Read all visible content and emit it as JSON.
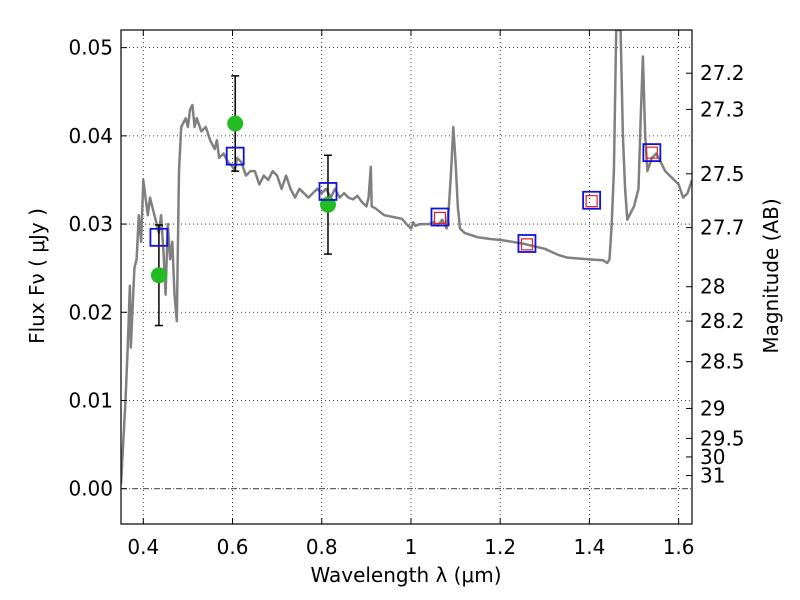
{
  "chart_data": {
    "type": "scatter",
    "xlabel": "Wavelength  λ (μm)",
    "ylabel": "Flux  Fν ( μJy )",
    "y2label": "Magnitude (AB)",
    "xlim": [
      0.35,
      1.63
    ],
    "ylim": [
      -0.004,
      0.052
    ],
    "grid": true,
    "xticks": [
      {
        "value": 0.4,
        "label": "0.4"
      },
      {
        "value": 0.6,
        "label": "0.6"
      },
      {
        "value": 0.8,
        "label": "0.8"
      },
      {
        "value": 1.0,
        "label": "1"
      },
      {
        "value": 1.2,
        "label": "1.2"
      },
      {
        "value": 1.4,
        "label": "1.4"
      },
      {
        "value": 1.6,
        "label": "1.6"
      }
    ],
    "yticks": [
      {
        "value": 0.0,
        "label": "0.00"
      },
      {
        "value": 0.01,
        "label": "0.01"
      },
      {
        "value": 0.02,
        "label": "0.02"
      },
      {
        "value": 0.03,
        "label": "0.03"
      },
      {
        "value": 0.04,
        "label": "0.04"
      },
      {
        "value": 0.05,
        "label": "0.05"
      }
    ],
    "y2ticks": [
      {
        "flux": 0.0471,
        "label": "27.2"
      },
      {
        "flux": 0.043,
        "label": "27.3"
      },
      {
        "flux": 0.0357,
        "label": "27.5"
      },
      {
        "flux": 0.0296,
        "label": "27.7"
      },
      {
        "flux": 0.0229,
        "label": "28"
      },
      {
        "flux": 0.019,
        "label": "28.2"
      },
      {
        "flux": 0.0144,
        "label": "28.5"
      },
      {
        "flux": 0.0091,
        "label": "29"
      },
      {
        "flux": 0.0057,
        "label": "29.5"
      },
      {
        "flux": 0.0036,
        "label": "30"
      },
      {
        "flux": 0.0015,
        "label": "31"
      }
    ],
    "colors": {
      "model": "#808080",
      "observed": "#22bb22",
      "model_box": "#1111dd",
      "nir_box": "#dd2222",
      "errorbar": "#000000"
    },
    "model_spectrum": [
      [
        0.35,
        0.0005
      ],
      [
        0.36,
        0.01
      ],
      [
        0.365,
        0.016
      ],
      [
        0.37,
        0.023
      ],
      [
        0.372,
        0.016
      ],
      [
        0.38,
        0.025
      ],
      [
        0.385,
        0.026
      ],
      [
        0.39,
        0.031
      ],
      [
        0.395,
        0.028
      ],
      [
        0.4,
        0.035
      ],
      [
        0.405,
        0.033
      ],
      [
        0.41,
        0.031
      ],
      [
        0.415,
        0.033
      ],
      [
        0.42,
        0.032
      ],
      [
        0.43,
        0.03
      ],
      [
        0.435,
        0.029
      ],
      [
        0.44,
        0.031
      ],
      [
        0.445,
        0.027
      ],
      [
        0.45,
        0.022
      ],
      [
        0.455,
        0.03
      ],
      [
        0.46,
        0.026
      ],
      [
        0.465,
        0.028
      ],
      [
        0.47,
        0.022
      ],
      [
        0.475,
        0.019
      ],
      [
        0.48,
        0.036
      ],
      [
        0.485,
        0.041
      ],
      [
        0.49,
        0.0415
      ],
      [
        0.495,
        0.042
      ],
      [
        0.5,
        0.041
      ],
      [
        0.505,
        0.043
      ],
      [
        0.51,
        0.0435
      ],
      [
        0.515,
        0.041
      ],
      [
        0.52,
        0.042
      ],
      [
        0.53,
        0.0405
      ],
      [
        0.54,
        0.041
      ],
      [
        0.55,
        0.0395
      ],
      [
        0.56,
        0.0385
      ],
      [
        0.565,
        0.0395
      ],
      [
        0.57,
        0.0375
      ],
      [
        0.58,
        0.038
      ],
      [
        0.59,
        0.037
      ],
      [
        0.6,
        0.0365
      ],
      [
        0.605,
        0.036
      ],
      [
        0.61,
        0.0375
      ],
      [
        0.62,
        0.037
      ],
      [
        0.63,
        0.0355
      ],
      [
        0.64,
        0.036
      ],
      [
        0.65,
        0.036
      ],
      [
        0.66,
        0.0345
      ],
      [
        0.67,
        0.0355
      ],
      [
        0.68,
        0.035
      ],
      [
        0.69,
        0.036
      ],
      [
        0.7,
        0.0355
      ],
      [
        0.71,
        0.034
      ],
      [
        0.72,
        0.0355
      ],
      [
        0.73,
        0.034
      ],
      [
        0.74,
        0.033
      ],
      [
        0.75,
        0.034
      ],
      [
        0.76,
        0.0335
      ],
      [
        0.77,
        0.033
      ],
      [
        0.78,
        0.0335
      ],
      [
        0.79,
        0.034
      ],
      [
        0.8,
        0.0335
      ],
      [
        0.81,
        0.034
      ],
      [
        0.82,
        0.033
      ],
      [
        0.83,
        0.034
      ],
      [
        0.84,
        0.033
      ],
      [
        0.85,
        0.0335
      ],
      [
        0.86,
        0.033
      ],
      [
        0.87,
        0.0328
      ],
      [
        0.88,
        0.0332
      ],
      [
        0.89,
        0.0325
      ],
      [
        0.9,
        0.032
      ],
      [
        0.905,
        0.033
      ],
      [
        0.91,
        0.0365
      ],
      [
        0.912,
        0.032
      ],
      [
        0.92,
        0.0318
      ],
      [
        0.94,
        0.031
      ],
      [
        0.96,
        0.0308
      ],
      [
        0.98,
        0.0306
      ],
      [
        0.99,
        0.03
      ],
      [
        1.0,
        0.0295
      ],
      [
        1.005,
        0.0302
      ],
      [
        1.01,
        0.0298
      ],
      [
        1.02,
        0.03
      ],
      [
        1.04,
        0.03
      ],
      [
        1.05,
        0.0302
      ],
      [
        1.06,
        0.0298
      ],
      [
        1.07,
        0.0305
      ],
      [
        1.08,
        0.0295
      ],
      [
        1.085,
        0.032
      ],
      [
        1.09,
        0.036
      ],
      [
        1.095,
        0.041
      ],
      [
        1.1,
        0.037
      ],
      [
        1.105,
        0.032
      ],
      [
        1.11,
        0.0295
      ],
      [
        1.12,
        0.029
      ],
      [
        1.15,
        0.0285
      ],
      [
        1.18,
        0.0283
      ],
      [
        1.2,
        0.0282
      ],
      [
        1.25,
        0.0278
      ],
      [
        1.3,
        0.0272
      ],
      [
        1.33,
        0.0265
      ],
      [
        1.35,
        0.0262
      ],
      [
        1.4,
        0.026
      ],
      [
        1.43,
        0.0259
      ],
      [
        1.44,
        0.0256
      ],
      [
        1.445,
        0.026
      ],
      [
        1.45,
        0.03
      ],
      [
        1.455,
        0.036
      ],
      [
        1.46,
        0.052
      ],
      [
        1.47,
        0.052
      ],
      [
        1.475,
        0.04
      ],
      [
        1.48,
        0.034
      ],
      [
        1.485,
        0.0305
      ],
      [
        1.49,
        0.031
      ],
      [
        1.5,
        0.032
      ],
      [
        1.51,
        0.034
      ],
      [
        1.515,
        0.042
      ],
      [
        1.52,
        0.049
      ],
      [
        1.525,
        0.04
      ],
      [
        1.53,
        0.036
      ],
      [
        1.54,
        0.0375
      ],
      [
        1.55,
        0.038
      ],
      [
        1.56,
        0.037
      ],
      [
        1.57,
        0.036
      ],
      [
        1.58,
        0.0355
      ],
      [
        1.59,
        0.035
      ],
      [
        1.6,
        0.0345
      ],
      [
        1.61,
        0.033
      ],
      [
        1.62,
        0.0335
      ],
      [
        1.63,
        0.035
      ]
    ],
    "observed_points": [
      {
        "x": 0.435,
        "y": 0.0242,
        "err": 0.0057
      },
      {
        "x": 0.606,
        "y": 0.0414,
        "err": 0.0054
      },
      {
        "x": 0.814,
        "y": 0.0322,
        "err": 0.0056
      }
    ],
    "model_photometry": [
      {
        "x": 0.435,
        "y": 0.0285
      },
      {
        "x": 0.606,
        "y": 0.0377
      },
      {
        "x": 0.814,
        "y": 0.0337
      },
      {
        "x": 1.065,
        "y": 0.0308
      },
      {
        "x": 1.26,
        "y": 0.0278
      },
      {
        "x": 1.405,
        "y": 0.0327
      },
      {
        "x": 1.54,
        "y": 0.0381
      }
    ],
    "nir_points": [
      {
        "x": 1.065,
        "y": 0.0307
      },
      {
        "x": 1.26,
        "y": 0.0277
      },
      {
        "x": 1.405,
        "y": 0.0326
      },
      {
        "x": 1.54,
        "y": 0.0381
      }
    ]
  }
}
